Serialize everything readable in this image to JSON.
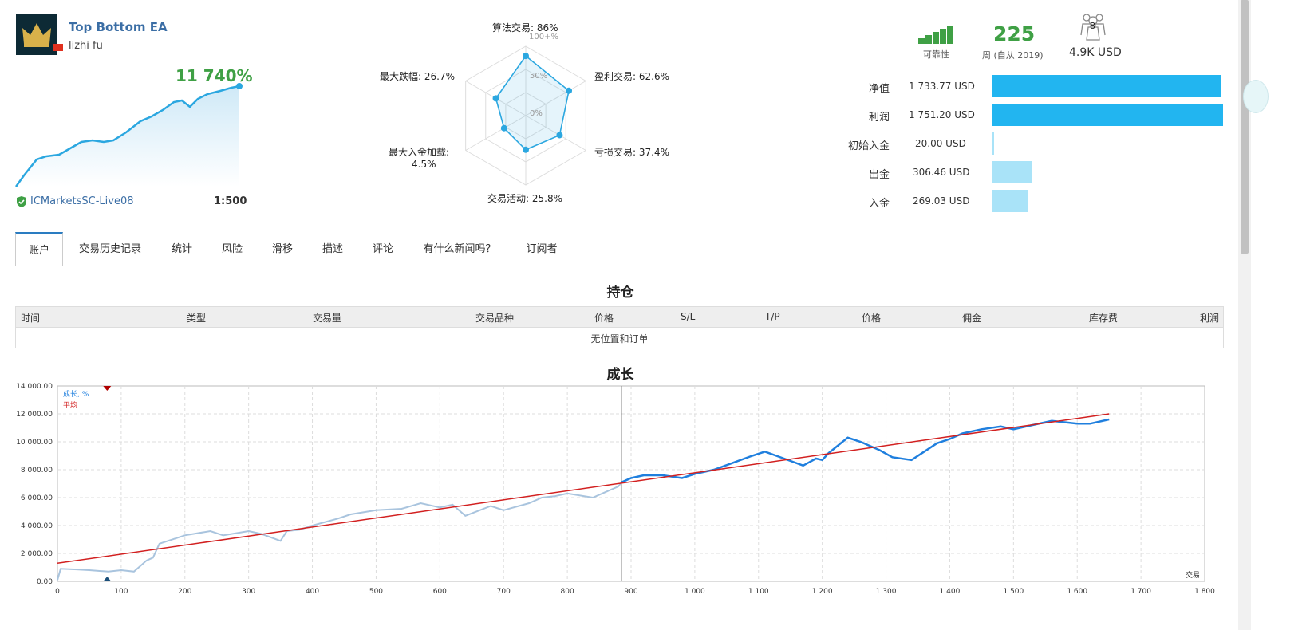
{
  "header": {
    "signal_name": "Top Bottom EA",
    "author": "lizhi fu",
    "growth": "11 740%",
    "broker": "ICMarketsSC-Live08",
    "leverage": "1:500"
  },
  "radar": {
    "labels": {
      "algo": "算法交易: 86%",
      "profit": "盈利交易: 62.6%",
      "loss": "亏损交易: 37.4%",
      "activity": "交易活动: 25.8%",
      "load_1": "最大入金加载:",
      "load_2": "4.5%",
      "drawdown": "最大跌幅: 26.7%"
    },
    "scale_labels": [
      "100+%",
      "50%",
      "0%"
    ],
    "values": [
      86,
      62.6,
      37.4,
      25.8,
      4.5,
      26.7
    ]
  },
  "stats": {
    "reliability_label": "可靠性",
    "weeks": "225",
    "weeks_label": "周 (自从 2019)",
    "subscribers": "8",
    "subscriber_funds": "4.9K USD",
    "rows": [
      {
        "label": "净值",
        "value": "1 733.77 USD",
        "fraction": 0.99,
        "color": "#22b5f0"
      },
      {
        "label": "利润",
        "value": "1 751.20 USD",
        "fraction": 1.0,
        "color": "#22b5f0"
      },
      {
        "label": "初始入金",
        "value": "20.00 USD",
        "fraction": 0.011,
        "color": "#a9e3f8"
      },
      {
        "label": "出金",
        "value": "306.46 USD",
        "fraction": 0.175,
        "color": "#a9e3f8"
      },
      {
        "label": "入金",
        "value": "269.03 USD",
        "fraction": 0.154,
        "color": "#a9e3f8"
      }
    ]
  },
  "tabs": [
    {
      "label": "账户",
      "active": true
    },
    {
      "label": "交易历史记录"
    },
    {
      "label": "统计"
    },
    {
      "label": "风险"
    },
    {
      "label": "滑移"
    },
    {
      "label": "描述"
    },
    {
      "label": "评论"
    },
    {
      "label": "有什么新闻吗？"
    },
    {
      "label": "订阅者"
    }
  ],
  "positions": {
    "title": "持仓",
    "columns": [
      "时间",
      "类型",
      "交易量",
      "交易品种",
      "价格",
      "S/L",
      "T/P",
      "价格",
      "佣金",
      "库存费",
      "利润"
    ],
    "empty_text": "无位置和订单"
  },
  "chart_data": {
    "type": "line",
    "title": "成长",
    "xlabel": "交易",
    "ylabel": "",
    "xlim": [
      0,
      1800
    ],
    "ylim": [
      0,
      14000
    ],
    "x_ticks": [
      "0",
      "100",
      "200",
      "300",
      "400",
      "500",
      "600",
      "700",
      "800",
      "900",
      "1 000",
      "1 100",
      "1 200",
      "1 300",
      "1 400",
      "1 500",
      "1 600",
      "1 700",
      "1 800"
    ],
    "y_ticks": [
      "0.00",
      "2 000.00",
      "4 000.00",
      "6 000.00",
      "8 000.00",
      "10 000.00",
      "12 000.00",
      "14 000.00"
    ],
    "legend": [
      "成长, %",
      "平均"
    ],
    "series": [
      {
        "name": "成长, %",
        "x": [
          0,
          5,
          30,
          50,
          80,
          100,
          120,
          140,
          150,
          160,
          200,
          240,
          260,
          300,
          320,
          350,
          360,
          380,
          400,
          440,
          460,
          500,
          540,
          570,
          600,
          620,
          640,
          680,
          700,
          740,
          760,
          780,
          800,
          840,
          880,
          885
        ],
        "y": [
          100,
          900,
          850,
          800,
          700,
          800,
          700,
          1500,
          1700,
          2700,
          3300,
          3600,
          3300,
          3600,
          3400,
          2900,
          3600,
          3700,
          4000,
          4500,
          4800,
          5100,
          5200,
          5600,
          5300,
          5500,
          4700,
          5400,
          5100,
          5600,
          6000,
          6100,
          6300,
          6000,
          6800,
          7100
        ]
      },
      {
        "name": "成长, %",
        "x": [
          885,
          900,
          920,
          950,
          980,
          1000,
          1030,
          1060,
          1090,
          1110,
          1140,
          1170,
          1190,
          1200,
          1210,
          1240,
          1260,
          1290,
          1310,
          1340,
          1360,
          1380,
          1400,
          1420,
          1450,
          1480,
          1500,
          1530,
          1560,
          1600,
          1620,
          1650
        ],
        "y": [
          7100,
          7400,
          7600,
          7600,
          7400,
          7700,
          8000,
          8500,
          9000,
          9300,
          8800,
          8300,
          8800,
          8700,
          9200,
          10300,
          10000,
          9400,
          8900,
          8700,
          9300,
          9900,
          10200,
          10600,
          10900,
          11100,
          10900,
          11200,
          11500,
          11300,
          11300,
          11600
        ]
      },
      {
        "name": "平均",
        "x": [
          0,
          1650
        ],
        "y": [
          1300,
          12000
        ]
      }
    ],
    "grid": true
  }
}
